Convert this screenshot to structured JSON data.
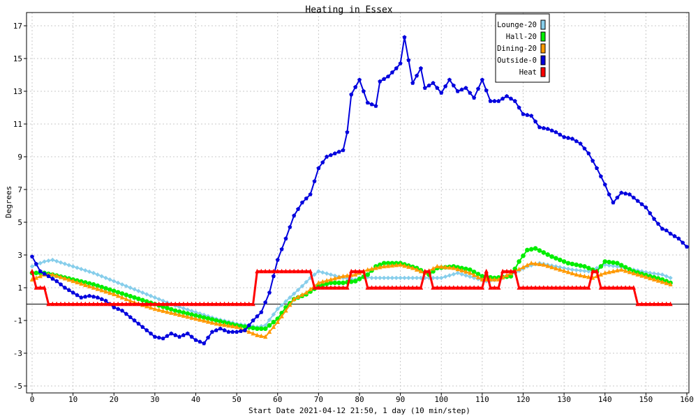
{
  "chart_data": {
    "type": "line",
    "title": "Heating in Essex",
    "xlabel": "Start Date 2021-04-12 21:50, 1 day (10 min/step)",
    "ylabel": "Degrees",
    "xlim": [
      0,
      160
    ],
    "ylim": [
      -5,
      18
    ],
    "x_ticks": [
      0,
      10,
      20,
      30,
      40,
      50,
      60,
      70,
      80,
      90,
      100,
      110,
      120,
      130,
      140,
      150,
      160
    ],
    "y_ticks": [
      -5,
      -3,
      -1,
      1,
      3,
      5,
      7,
      9,
      11,
      13,
      15,
      17
    ],
    "grid": true,
    "legend_position": "top-right",
    "reference_line_y": 0,
    "series": [
      {
        "name": "Lounge-20",
        "color": "#87ceeb",
        "marker": "diamond",
        "points": [
          [
            0,
            2.3
          ],
          [
            3,
            2.6
          ],
          [
            5,
            2.7
          ],
          [
            10,
            2.3
          ],
          [
            15,
            1.9
          ],
          [
            20,
            1.4
          ],
          [
            25,
            0.9
          ],
          [
            30,
            0.4
          ],
          [
            35,
            -0.1
          ],
          [
            40,
            -0.5
          ],
          [
            45,
            -0.9
          ],
          [
            50,
            -1.2
          ],
          [
            55,
            -1.4
          ],
          [
            57,
            -1.3
          ],
          [
            60,
            -0.3
          ],
          [
            63,
            0.4
          ],
          [
            66,
            1.1
          ],
          [
            68,
            1.6
          ],
          [
            70,
            2.0
          ],
          [
            73,
            1.8
          ],
          [
            76,
            1.6
          ],
          [
            79,
            1.5
          ],
          [
            81,
            1.7
          ],
          [
            83,
            1.6
          ],
          [
            86,
            1.6
          ],
          [
            90,
            1.6
          ],
          [
            95,
            1.6
          ],
          [
            98,
            1.6
          ],
          [
            100,
            1.6
          ],
          [
            104,
            1.9
          ],
          [
            108,
            1.6
          ],
          [
            111,
            1.4
          ],
          [
            114,
            1.5
          ],
          [
            118,
            1.9
          ],
          [
            121,
            2.3
          ],
          [
            124,
            2.5
          ],
          [
            128,
            2.3
          ],
          [
            132,
            2.1
          ],
          [
            136,
            2.0
          ],
          [
            140,
            2.4
          ],
          [
            143,
            2.3
          ],
          [
            147,
            2.1
          ],
          [
            151,
            1.9
          ],
          [
            154,
            1.8
          ],
          [
            156,
            1.6
          ]
        ]
      },
      {
        "name": "Hall-20",
        "color": "#00ee00",
        "marker": "circle",
        "points": [
          [
            0,
            1.9
          ],
          [
            3,
            1.9
          ],
          [
            5,
            1.8
          ],
          [
            10,
            1.5
          ],
          [
            15,
            1.2
          ],
          [
            20,
            0.8
          ],
          [
            25,
            0.4
          ],
          [
            30,
            0.0
          ],
          [
            35,
            -0.4
          ],
          [
            40,
            -0.7
          ],
          [
            45,
            -1.0
          ],
          [
            50,
            -1.3
          ],
          [
            55,
            -1.5
          ],
          [
            57,
            -1.5
          ],
          [
            60,
            -0.9
          ],
          [
            62,
            -0.2
          ],
          [
            64,
            0.3
          ],
          [
            67,
            0.6
          ],
          [
            70,
            1.1
          ],
          [
            73,
            1.3
          ],
          [
            76,
            1.3
          ],
          [
            79,
            1.4
          ],
          [
            82,
            1.8
          ],
          [
            84,
            2.3
          ],
          [
            86,
            2.5
          ],
          [
            90,
            2.5
          ],
          [
            94,
            2.2
          ],
          [
            97,
            1.8
          ],
          [
            99,
            2.2
          ],
          [
            103,
            2.3
          ],
          [
            107,
            2.1
          ],
          [
            110,
            1.7
          ],
          [
            113,
            1.6
          ],
          [
            117,
            1.7
          ],
          [
            119,
            2.6
          ],
          [
            121,
            3.3
          ],
          [
            123,
            3.4
          ],
          [
            127,
            2.9
          ],
          [
            131,
            2.5
          ],
          [
            135,
            2.3
          ],
          [
            138,
            2.0
          ],
          [
            140,
            2.6
          ],
          [
            143,
            2.5
          ],
          [
            147,
            2.0
          ],
          [
            151,
            1.7
          ],
          [
            154,
            1.5
          ],
          [
            156,
            1.3
          ]
        ]
      },
      {
        "name": "Dining-20",
        "color": "#ff9900",
        "marker": "triangle",
        "points": [
          [
            0,
            1.5
          ],
          [
            3,
            1.8
          ],
          [
            5,
            1.8
          ],
          [
            10,
            1.4
          ],
          [
            15,
            1.0
          ],
          [
            20,
            0.6
          ],
          [
            25,
            0.1
          ],
          [
            30,
            -0.3
          ],
          [
            35,
            -0.6
          ],
          [
            40,
            -0.9
          ],
          [
            45,
            -1.2
          ],
          [
            50,
            -1.4
          ],
          [
            55,
            -1.9
          ],
          [
            57,
            -2.0
          ],
          [
            60,
            -1.1
          ],
          [
            62,
            -0.4
          ],
          [
            64,
            0.3
          ],
          [
            67,
            0.7
          ],
          [
            70,
            1.3
          ],
          [
            73,
            1.5
          ],
          [
            76,
            1.7
          ],
          [
            79,
            1.8
          ],
          [
            82,
            2.1
          ],
          [
            86,
            2.3
          ],
          [
            90,
            2.4
          ],
          [
            93,
            2.2
          ],
          [
            96,
            1.9
          ],
          [
            99,
            2.3
          ],
          [
            103,
            2.2
          ],
          [
            107,
            1.9
          ],
          [
            110,
            1.5
          ],
          [
            114,
            1.5
          ],
          [
            118,
            2.0
          ],
          [
            122,
            2.5
          ],
          [
            125,
            2.4
          ],
          [
            129,
            2.1
          ],
          [
            133,
            1.8
          ],
          [
            137,
            1.6
          ],
          [
            140,
            1.9
          ],
          [
            144,
            2.1
          ],
          [
            148,
            1.8
          ],
          [
            152,
            1.5
          ],
          [
            156,
            1.2
          ]
        ]
      },
      {
        "name": "Outside-0",
        "color": "#0000dd",
        "marker": "pentagon",
        "points": [
          [
            0,
            2.9
          ],
          [
            2,
            2.0
          ],
          [
            4,
            1.7
          ],
          [
            6,
            1.4
          ],
          [
            8,
            1.0
          ],
          [
            10,
            0.7
          ],
          [
            12,
            0.4
          ],
          [
            14,
            0.5
          ],
          [
            16,
            0.4
          ],
          [
            18,
            0.2
          ],
          [
            20,
            -0.2
          ],
          [
            22,
            -0.4
          ],
          [
            24,
            -0.8
          ],
          [
            26,
            -1.2
          ],
          [
            28,
            -1.6
          ],
          [
            30,
            -2.0
          ],
          [
            32,
            -2.1
          ],
          [
            34,
            -1.8
          ],
          [
            36,
            -2.0
          ],
          [
            38,
            -1.8
          ],
          [
            40,
            -2.2
          ],
          [
            42,
            -2.4
          ],
          [
            44,
            -1.7
          ],
          [
            46,
            -1.5
          ],
          [
            48,
            -1.7
          ],
          [
            50,
            -1.7
          ],
          [
            52,
            -1.6
          ],
          [
            54,
            -1.0
          ],
          [
            56,
            -0.5
          ],
          [
            58,
            0.7
          ],
          [
            60,
            2.7
          ],
          [
            62,
            4.0
          ],
          [
            64,
            5.4
          ],
          [
            66,
            6.2
          ],
          [
            68,
            6.7
          ],
          [
            70,
            8.3
          ],
          [
            72,
            9.0
          ],
          [
            74,
            9.2
          ],
          [
            76,
            9.4
          ],
          [
            77,
            10.5
          ],
          [
            78,
            12.8
          ],
          [
            80,
            13.7
          ],
          [
            82,
            12.3
          ],
          [
            84,
            12.1
          ],
          [
            85,
            13.6
          ],
          [
            87,
            13.9
          ],
          [
            89,
            14.4
          ],
          [
            90,
            14.7
          ],
          [
            91,
            16.3
          ],
          [
            93,
            13.5
          ],
          [
            95,
            14.4
          ],
          [
            96,
            13.2
          ],
          [
            98,
            13.5
          ],
          [
            100,
            12.9
          ],
          [
            102,
            13.7
          ],
          [
            104,
            13.0
          ],
          [
            106,
            13.2
          ],
          [
            108,
            12.6
          ],
          [
            110,
            13.7
          ],
          [
            112,
            12.4
          ],
          [
            114,
            12.4
          ],
          [
            116,
            12.7
          ],
          [
            118,
            12.4
          ],
          [
            120,
            11.6
          ],
          [
            122,
            11.5
          ],
          [
            124,
            10.8
          ],
          [
            126,
            10.7
          ],
          [
            128,
            10.5
          ],
          [
            130,
            10.2
          ],
          [
            132,
            10.1
          ],
          [
            134,
            9.8
          ],
          [
            136,
            9.2
          ],
          [
            138,
            8.3
          ],
          [
            140,
            7.3
          ],
          [
            141,
            6.7
          ],
          [
            142,
            6.2
          ],
          [
            144,
            6.8
          ],
          [
            146,
            6.7
          ],
          [
            148,
            6.3
          ],
          [
            150,
            5.9
          ],
          [
            152,
            5.2
          ],
          [
            154,
            4.6
          ],
          [
            155,
            4.5
          ],
          [
            156,
            4.3
          ],
          [
            158,
            4.0
          ],
          [
            160,
            3.5
          ]
        ]
      },
      {
        "name": "Heat",
        "color": "#ff0000",
        "marker": "triangle",
        "points": [
          [
            0,
            2.0
          ],
          [
            1,
            1.0
          ],
          [
            3,
            1.0
          ],
          [
            4,
            0.0
          ],
          [
            54,
            0.0
          ],
          [
            55,
            2.0
          ],
          [
            68,
            2.0
          ],
          [
            69,
            1.0
          ],
          [
            77,
            1.0
          ],
          [
            78,
            2.0
          ],
          [
            81,
            2.0
          ],
          [
            82,
            1.0
          ],
          [
            95,
            1.0
          ],
          [
            96,
            2.0
          ],
          [
            97,
            2.0
          ],
          [
            98,
            1.0
          ],
          [
            110,
            1.0
          ],
          [
            111,
            2.0
          ],
          [
            112,
            1.0
          ],
          [
            114,
            1.0
          ],
          [
            115,
            2.0
          ],
          [
            118,
            2.0
          ],
          [
            119,
            1.0
          ],
          [
            136,
            1.0
          ],
          [
            137,
            2.0
          ],
          [
            138,
            2.0
          ],
          [
            139,
            1.0
          ],
          [
            147,
            1.0
          ],
          [
            148,
            0.0
          ],
          [
            156,
            0.0
          ]
        ]
      }
    ]
  }
}
